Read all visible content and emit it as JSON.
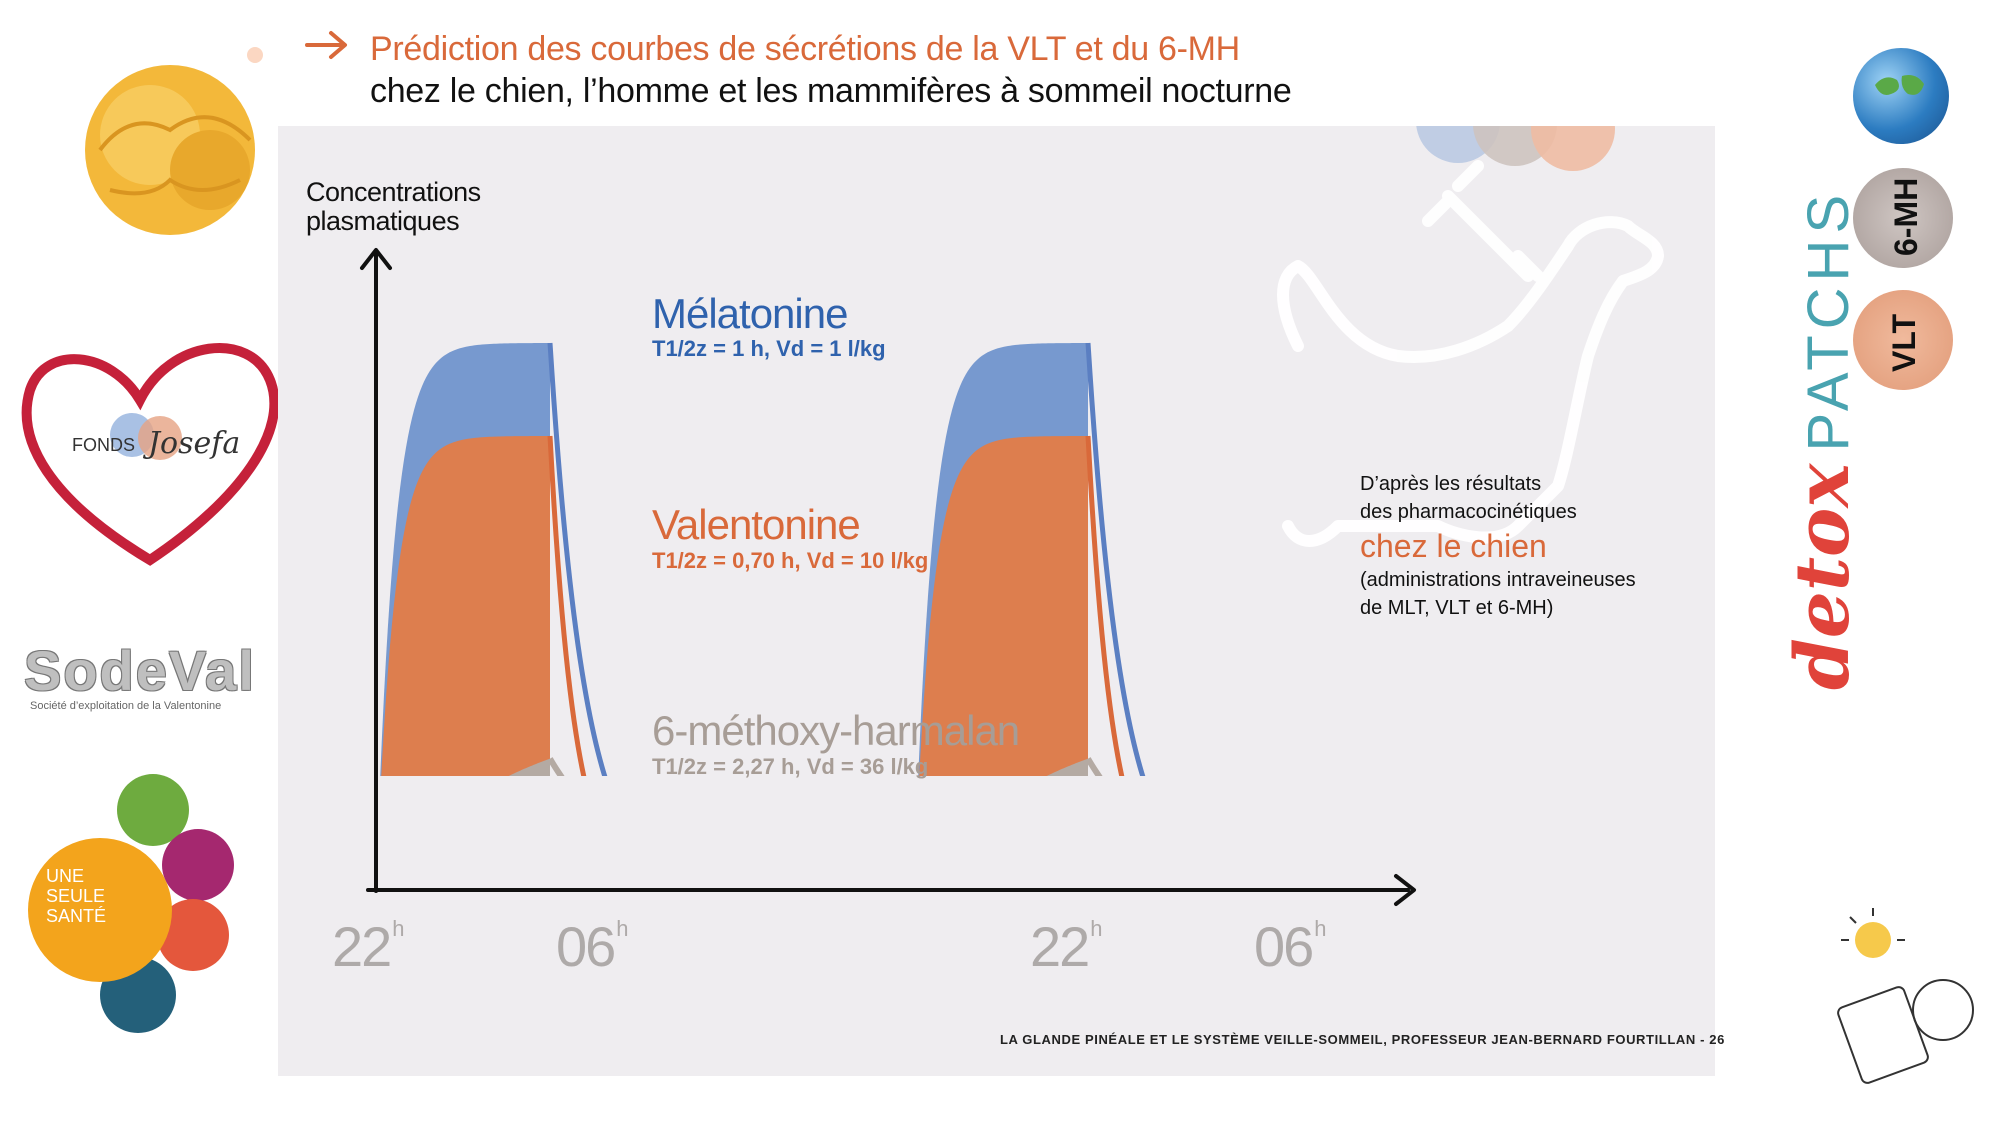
{
  "header": {
    "line1": "Prédiction des courbes de sécrétions de la VLT et du 6-MH",
    "line2": "chez le chien, l’homme et les mammifères à sommeil nocturne"
  },
  "chart_data": {
    "type": "area",
    "ylabel_line1": "Concentrations",
    "ylabel_line2": "plasmatiques",
    "x_tick_labels": [
      {
        "main": "22",
        "sup": "h"
      },
      {
        "main": "06",
        "sup": "h"
      },
      {
        "main": "22",
        "sup": "h"
      },
      {
        "main": "06",
        "sup": "h"
      }
    ],
    "infusion_periods": [
      [
        "22h",
        "06h"
      ],
      [
        "22h",
        "06h"
      ]
    ],
    "series": [
      {
        "name": "Mélatonine",
        "params": "T1/2z = 1 h, Vd = 1 l/kg",
        "half_life_h": 1,
        "vd_l_per_kg": 1,
        "color": "#7799cf",
        "line_color": "#5b7fc2",
        "relative_plateau": 1.0
      },
      {
        "name": "Valentonine",
        "params": "T1/2z = 0,70 h, Vd = 10 l/kg",
        "half_life_h": 0.7,
        "vd_l_per_kg": 10,
        "color": "#dd7e4e",
        "line_color": "#d9693a",
        "relative_plateau": 0.83
      },
      {
        "name": "6-méthoxy-harmalan",
        "params": "T1/2z = 2,27 h, Vd = 36 l/kg",
        "half_life_h": 2.27,
        "vd_l_per_kg": 36,
        "color": "#b4aaa3",
        "line_color": "#b4aaa3",
        "relative_plateau": 0.24
      }
    ],
    "note": {
      "line1": "D’après les résultats",
      "line2": "des pharmacocinétiques",
      "highlight": "chez le chien",
      "line3": "(administrations intraveineuses",
      "line4": "de MLT, VLT et 6-MH)"
    },
    "grid": false
  },
  "footer": {
    "text": "LA GLANDE PINÉALE ET LE SYSTÈME VEILLE-SOMMEIL, PROFESSEUR JEAN-BERNARD FOURTILLAN -",
    "page": "26"
  },
  "logos": {
    "fonds_label": "FONDS",
    "fonds_script": "Josefa",
    "sodeval": "SodeVal",
    "sodeval_sub": "Société d’exploitation de la Valentonine",
    "one_health_1": "UNE",
    "one_health_2": "SEULE",
    "one_health_3": "SANTÉ",
    "mh_badge": "6-MH",
    "vlt_badge": "VLT",
    "detox_a": "detox",
    "detox_b": "PATCHS"
  }
}
